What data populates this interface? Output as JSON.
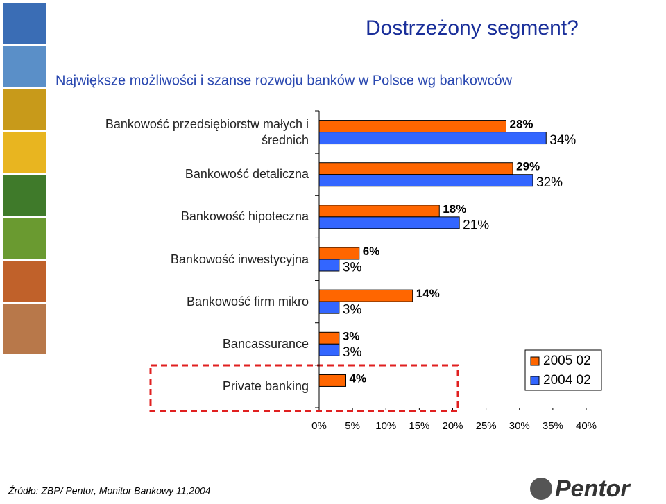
{
  "title": "Dostrzeżony segment?",
  "subtitle": "Największe możliwości i szanse rozwoju banków w Polsce wg bankowców",
  "source": "Źródło: ZBP/ Pentor, Monitor Bankowy 11,2004",
  "logo": "Pentor",
  "chart_data": {
    "type": "hbar",
    "categories": [
      "Bankowość przedsiębiorstw małych i średnich",
      "Bankowość detaliczna",
      "Bankowość hipoteczna",
      "Bankowość inwestycyjna",
      "Bankowość firm mikro",
      "Bancassurance",
      "Private banking"
    ],
    "series": [
      {
        "name": "2005 02",
        "color": "#ff6600",
        "values": [
          28,
          29,
          18,
          6,
          14,
          3,
          4
        ],
        "value_labels": [
          "28%",
          "29%",
          "18%",
          "6%",
          "14%",
          "3%",
          "4%"
        ]
      },
      {
        "name": "2004 02",
        "color": "#3366ff",
        "values": [
          34,
          32,
          21,
          3,
          3,
          3,
          null
        ],
        "value_labels": [
          "34%",
          "32%",
          "21%",
          "3%",
          "3%",
          "3%",
          null
        ]
      }
    ],
    "xlim": [
      0,
      40
    ],
    "xticks": [
      {
        "value": 0,
        "label": "0%"
      },
      {
        "value": 5,
        "label": "5%"
      },
      {
        "value": 10,
        "label": "10%"
      },
      {
        "value": 15,
        "label": "15%"
      },
      {
        "value": 20,
        "label": "20%"
      },
      {
        "value": 25,
        "label": "25%"
      },
      {
        "value": 30,
        "label": "30%"
      },
      {
        "value": 35,
        "label": "35%"
      },
      {
        "value": 40,
        "label": "40%"
      }
    ],
    "legend": "lower right"
  }
}
